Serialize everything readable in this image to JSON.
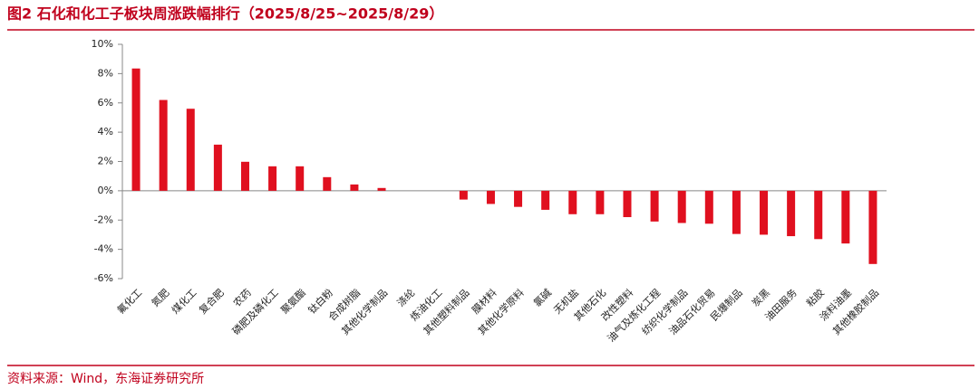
{
  "chart_data": {
    "type": "bar",
    "title": "图2  石化和化工子板块周涨跌幅排行（2025/8/25~2025/8/29）",
    "source": "资料来源：Wind，东海证券研究所",
    "categories": [
      "氟化工",
      "氮肥",
      "煤化工",
      "复合肥",
      "农药",
      "磷肥及磷化工",
      "聚氨酯",
      "钛白粉",
      "合成树脂",
      "其他化学制品",
      "涤纶",
      "炼油化工",
      "其他塑料制品",
      "膜材料",
      "其他化学原料",
      "氯碱",
      "无机盐",
      "其他石化",
      "改性塑料",
      "油气及炼化工程",
      "纺织化学制品",
      "油品石化贸易",
      "民爆制品",
      "炭黑",
      "油田服务",
      "粘胶",
      "涂料油墨",
      "其他橡胶制品"
    ],
    "values": [
      8.35,
      6.2,
      5.6,
      3.15,
      1.98,
      1.67,
      1.67,
      0.93,
      0.43,
      0.19,
      0.0,
      0.0,
      -0.6,
      -0.9,
      -1.1,
      -1.3,
      -1.6,
      -1.6,
      -1.8,
      -2.1,
      -2.2,
      -2.25,
      -2.95,
      -3.0,
      -3.1,
      -3.3,
      -3.6,
      -5.0
    ],
    "color": "#e0101f",
    "ylim": [
      -6,
      10
    ],
    "yticks": [
      {
        "value": -6,
        "label": "-6%"
      },
      {
        "value": -4,
        "label": "-4%"
      },
      {
        "value": -2,
        "label": "-2%"
      },
      {
        "value": 0,
        "label": "0%"
      },
      {
        "value": 2,
        "label": "2%"
      },
      {
        "value": 4,
        "label": "4%"
      },
      {
        "value": 6,
        "label": "6%"
      },
      {
        "value": 8,
        "label": "8%"
      },
      {
        "value": 10,
        "label": "10%"
      }
    ],
    "grid": false
  }
}
